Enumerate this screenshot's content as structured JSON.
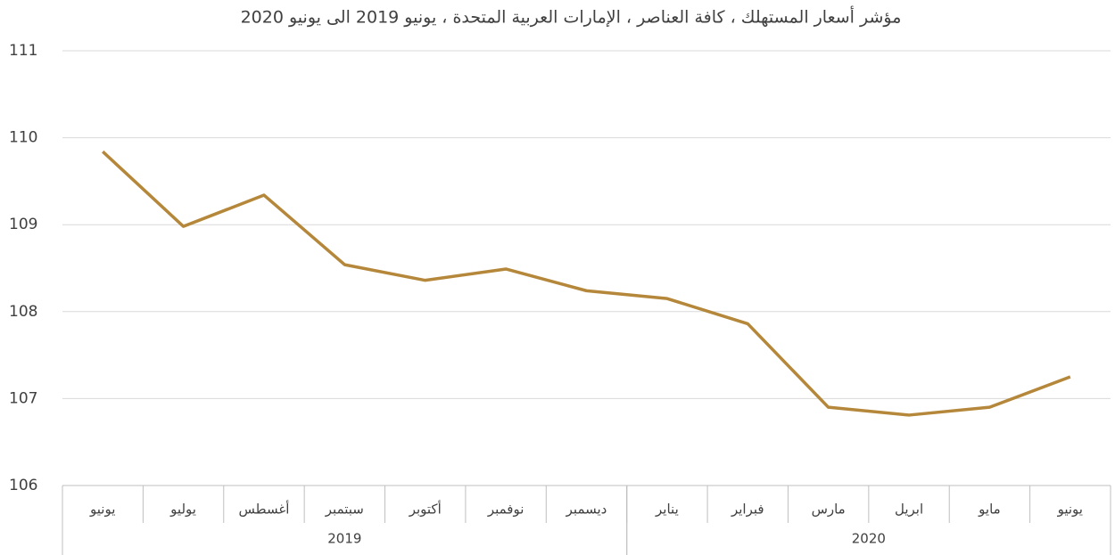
{
  "chart_data": {
    "type": "line",
    "title": "مؤشر أسعار المستهلك ، كافة العناصر ، الإمارات العربية المتحدة ، يونيو 2019 الى يونيو 2020",
    "categories": [
      "يونيو",
      "يوليو",
      "أغسطس",
      "سبتمبر",
      "أكتوبر",
      "نوفمبر",
      "ديسمبر",
      "يناير",
      "فبراير",
      "مارس",
      "ابريل",
      "مايو",
      "يونيو"
    ],
    "x_groups": [
      {
        "label": "2019",
        "count": 7
      },
      {
        "label": "2020",
        "count": 6
      }
    ],
    "series": [
      {
        "color": "#b5873a",
        "values": [
          109.84,
          108.98,
          109.34,
          108.54,
          108.36,
          108.49,
          108.24,
          108.15,
          107.86,
          106.9,
          106.81,
          106.9,
          107.25
        ]
      }
    ],
    "ylim": [
      106,
      111
    ],
    "yticks": [
      106,
      107,
      108,
      109,
      110,
      111
    ],
    "grid": true
  }
}
